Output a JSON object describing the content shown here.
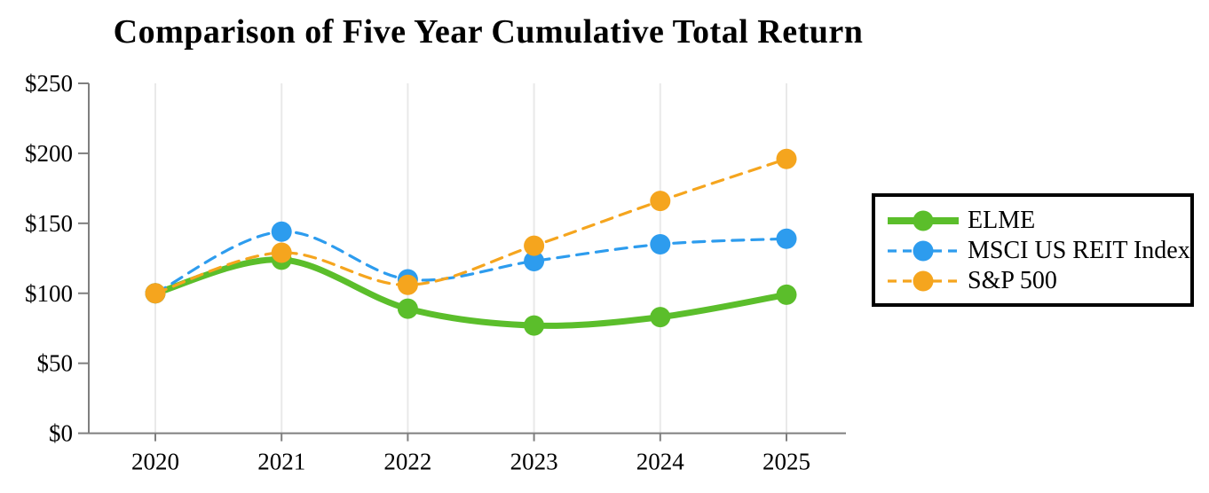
{
  "title": "Comparison of Five Year Cumulative Total Return",
  "colors": {
    "elme_green": "#5BBE2B",
    "msci_blue": "#2D9CEE",
    "sp500_orange": "#F5A51E",
    "axis_gray": "#7F7F7F",
    "gridline_gray": "#E9E9E9",
    "text_black": "#000000",
    "legend_border": "#000000",
    "background": "#FFFFFF"
  },
  "chart_data": {
    "type": "line",
    "title": "Comparison of Five Year Cumulative Total Return",
    "categories": [
      "2020",
      "2021",
      "2022",
      "2023",
      "2024",
      "2025"
    ],
    "xlabel": "",
    "ylabel": "",
    "ylim": [
      0,
      250
    ],
    "y_ticks": [
      {
        "value": 0,
        "label": "$0"
      },
      {
        "value": 50,
        "label": "$50"
      },
      {
        "value": 100,
        "label": "$100"
      },
      {
        "value": 150,
        "label": "$150"
      },
      {
        "value": 200,
        "label": "$200"
      },
      {
        "value": 250,
        "label": "$250"
      }
    ],
    "grid": "vertical-only",
    "legend_position": "right",
    "series": [
      {
        "name": "ELME",
        "color": "#5BBE2B",
        "style": "solid",
        "line_width": 7,
        "marker": "circle",
        "values": [
          100,
          124,
          89,
          77,
          83,
          99
        ]
      },
      {
        "name": "MSCI US REIT Index",
        "color": "#2D9CEE",
        "style": "dashed",
        "line_width": 3.2,
        "marker": "circle",
        "values": [
          100,
          144,
          110,
          123,
          135,
          139
        ]
      },
      {
        "name": "S&P 500",
        "color": "#F5A51E",
        "style": "dashed",
        "line_width": 3.2,
        "marker": "circle",
        "values": [
          100,
          129,
          106,
          134,
          166,
          196
        ]
      }
    ]
  }
}
